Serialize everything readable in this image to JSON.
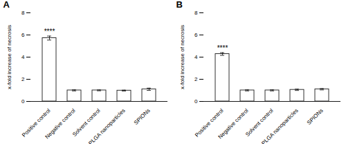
{
  "chart_data": [
    {
      "type": "bar",
      "title": "A",
      "categories": [
        "Positive control",
        "Negative control",
        "Solvent control",
        "PLGA nanoparticles",
        "SPIONs"
      ],
      "values": [
        5.72,
        1.0,
        1.0,
        0.98,
        1.1
      ],
      "errors": [
        0.18,
        0.05,
        0.04,
        0.04,
        0.1
      ],
      "color": "#ffffff",
      "ylabel": "x-fold increase of necrosis",
      "ylim": [
        0,
        8
      ],
      "yticks": [
        0,
        2,
        4,
        6,
        8
      ],
      "grid": false,
      "annotations": [
        {
          "text": "****",
          "x": "Positive control",
          "y": 6.1
        }
      ]
    },
    {
      "type": "bar",
      "title": "B",
      "categories": [
        "Positive control",
        "Negative control",
        "Solvent control",
        "PLGA nanoparticles",
        "SPIONs"
      ],
      "values": [
        4.28,
        1.0,
        1.0,
        1.05,
        1.1
      ],
      "errors": [
        0.12,
        0.05,
        0.05,
        0.06,
        0.06
      ],
      "color": "#ffffff",
      "ylabel": "x-fold increase of necrosis",
      "ylim": [
        0,
        8
      ],
      "yticks": [
        0,
        2,
        4,
        6,
        8
      ],
      "grid": false,
      "annotations": [
        {
          "text": "****",
          "x": "Positive control",
          "y": 4.62
        }
      ]
    }
  ]
}
